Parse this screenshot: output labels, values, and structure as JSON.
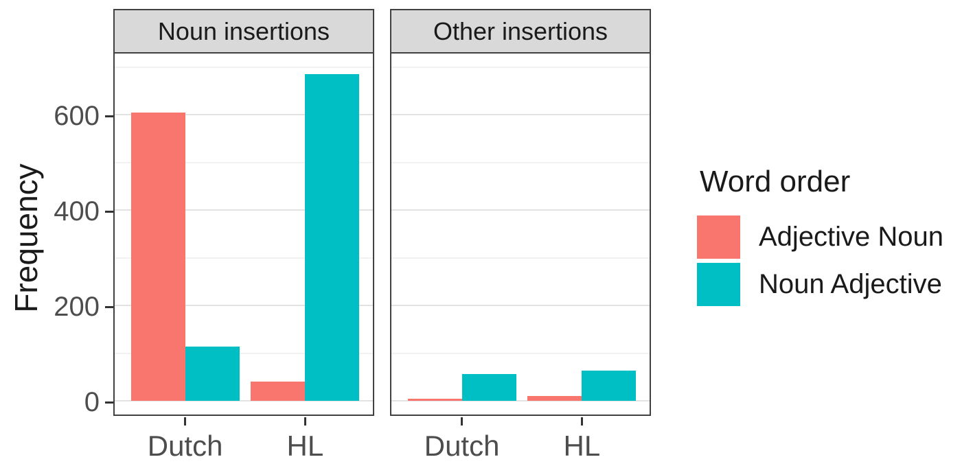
{
  "chart_data": {
    "type": "bar",
    "grouping": "dodged",
    "faceted": true,
    "categories": [
      "Dutch",
      "HL"
    ],
    "facets": [
      {
        "label": "Noun insertions",
        "series": [
          {
            "name": "Adjective Noun",
            "values": [
              605,
              40
            ]
          },
          {
            "name": "Noun Adjective",
            "values": [
              113,
              685
            ]
          }
        ]
      },
      {
        "label": "Other insertions",
        "series": [
          {
            "name": "Adjective Noun",
            "values": [
              4,
              10
            ]
          },
          {
            "name": "Noun Adjective",
            "values": [
              56,
              63
            ]
          }
        ]
      }
    ],
    "title": "",
    "xlabel": "",
    "ylabel": "Frequency",
    "yticks": [
      0,
      200,
      400,
      600
    ],
    "ytick_labels": [
      "0",
      "200",
      "400",
      "600"
    ],
    "minor_gridlines": [
      100,
      300,
      500,
      700
    ],
    "ylim": [
      0,
      730
    ],
    "grid": "on",
    "legend": {
      "title": "Word order",
      "position": "right",
      "items": [
        {
          "label": "Adjective Noun",
          "color": "#F8766D"
        },
        {
          "label": "Noun Adjective",
          "color": "#00BFC4"
        }
      ]
    },
    "style": {
      "strip_background": "#D9D9D9",
      "panel_border": "#404040",
      "major_gridline": "#E2E2E2",
      "minor_gridline": "#F2F2F2",
      "tick_label_color": "#4D4D4D",
      "axis_title_color": "#1A1A1A"
    }
  }
}
